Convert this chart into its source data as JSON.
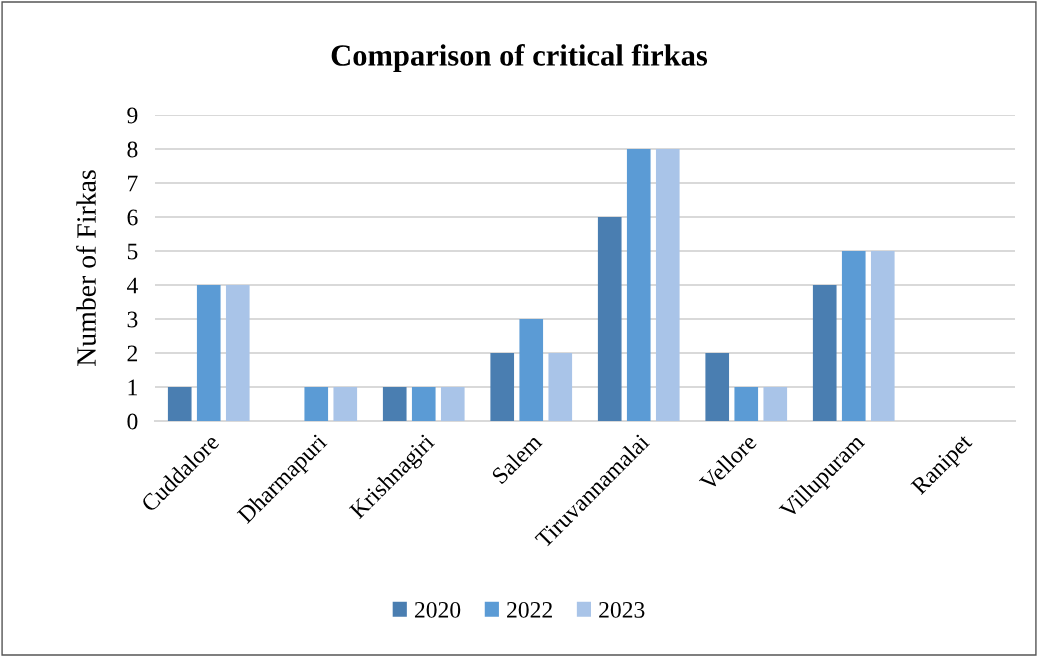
{
  "chart_data": {
    "type": "bar",
    "title": "Comparison of critical firkas",
    "ylabel": "Number of Firkas",
    "categories": [
      "Cuddalore",
      "Dharmapuri",
      "Krishnagiri",
      "Salem",
      "Tiruvannamalai",
      "Vellore",
      "Villupuram",
      "Ranipet"
    ],
    "series": [
      {
        "name": "2020",
        "color": "#4a7eb1",
        "values": [
          1,
          0,
          1,
          2,
          6,
          2,
          4,
          0
        ]
      },
      {
        "name": "2022",
        "color": "#5b9bd5",
        "values": [
          4,
          1,
          1,
          3,
          8,
          1,
          5,
          0
        ]
      },
      {
        "name": "2023",
        "color": "#a9c4e8",
        "values": [
          4,
          1,
          1,
          2,
          8,
          1,
          5,
          0
        ]
      }
    ],
    "ylim": [
      0,
      9
    ],
    "yticks": [
      0,
      1,
      2,
      3,
      4,
      5,
      6,
      7,
      8,
      9
    ],
    "grid": "y",
    "legend": "bottom"
  }
}
